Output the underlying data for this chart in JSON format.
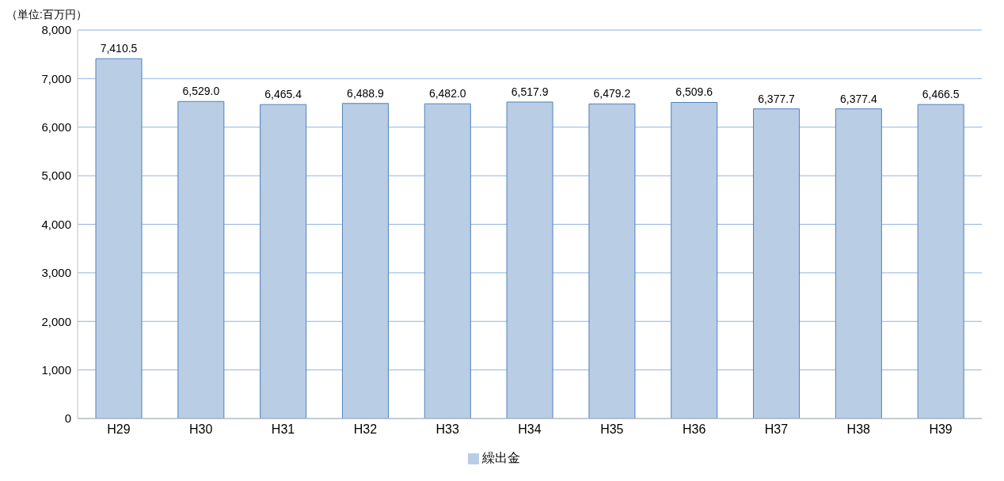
{
  "chart_data": {
    "type": "bar",
    "ylabel": "（単位:百万円）",
    "categories": [
      "H29",
      "H30",
      "H31",
      "H32",
      "H33",
      "H34",
      "H35",
      "H36",
      "H37",
      "H38",
      "H39"
    ],
    "series": [
      {
        "name": "繰出金",
        "color": "#b9cde5",
        "values": [
          7410.5,
          6529.0,
          6465.4,
          6488.9,
          6482.0,
          6517.9,
          6479.2,
          6509.6,
          6377.7,
          6377.4,
          6466.5
        ],
        "value_labels": [
          "7,410.5",
          "6,529.0",
          "6,465.4",
          "6,488.9",
          "6,482.0",
          "6,517.9",
          "6,479.2",
          "6,509.6",
          "6,377.7",
          "6,377.4",
          "6,466.5"
        ]
      }
    ],
    "ylim": [
      0,
      8000
    ],
    "yticks": [
      0,
      {
        "value": 1000,
        "label": "1,000"
      },
      {
        "value": 2000,
        "label": "2,000"
      },
      {
        "value": 3000,
        "label": "3,000"
      },
      {
        "value": 4000,
        "label": "4,000"
      },
      {
        "value": 5000,
        "label": "5,000"
      },
      {
        "value": 6000,
        "label": "6,000"
      },
      {
        "value": 7000,
        "label": "7,000"
      },
      {
        "value": 8000,
        "label": "8,000"
      }
    ],
    "grid": "y",
    "legend": "bottom"
  }
}
